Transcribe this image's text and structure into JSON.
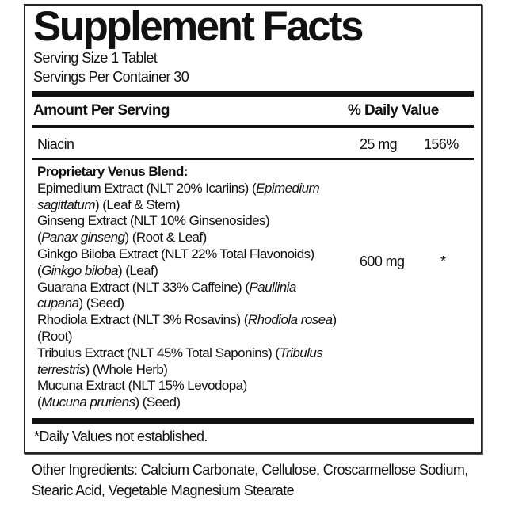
{
  "title": "Supplement Facts",
  "serving_size": "Serving Size 1 Tablet",
  "servings_per_container": "Servings Per Container 30",
  "header": {
    "amount": "Amount Per Serving",
    "daily_value": "% Daily Value"
  },
  "niacin": {
    "name": "Niacin",
    "amount": "25 mg",
    "dv": "156%"
  },
  "blend": {
    "name": "Proprietary Venus Blend:",
    "amount": "600 mg",
    "dv": "*",
    "lines": [
      [
        {
          "t": "Epimedium Extract (NLT 20% Icariins) ("
        },
        {
          "t": "Epimedium",
          "i": true
        }
      ],
      [
        {
          "t": "sagittatum",
          "i": true
        },
        {
          "t": ") (Leaf & Stem)"
        }
      ],
      [
        {
          "t": "Ginseng Extract (NLT 10% Ginsenosides)"
        }
      ],
      [
        {
          "t": " ("
        },
        {
          "t": "Panax ginseng",
          "i": true
        },
        {
          "t": ") (Root & Leaf)"
        }
      ],
      [
        {
          "t": "Ginkgo Biloba Extract (NLT 22% Total Flavonoids)"
        }
      ],
      [
        {
          "t": " ("
        },
        {
          "t": "Ginkgo biloba",
          "i": true
        },
        {
          "t": ") (Leaf)"
        }
      ],
      [
        {
          "t": "Guarana Extract (NLT 33% Caffeine) ("
        },
        {
          "t": "Paullinia",
          "i": true
        }
      ],
      [
        {
          "t": "cupana",
          "i": true
        },
        {
          "t": ") (Seed)"
        }
      ],
      [
        {
          "t": "Rhodiola Extract (NLT 3% Rosavins) ("
        },
        {
          "t": "Rhodiola rosea",
          "i": true
        },
        {
          "t": ")"
        }
      ],
      [
        {
          "t": " (Root)"
        }
      ],
      [
        {
          "t": "Tribulus Extract (NLT 45% Total Saponins) ("
        },
        {
          "t": "Tribulus",
          "i": true
        }
      ],
      [
        {
          "t": "terrestris",
          "i": true
        },
        {
          "t": ") (Whole Herb)"
        }
      ],
      [
        {
          "t": "Mucuna Extract (NLT 15% Levodopa)"
        }
      ],
      [
        {
          "t": "("
        },
        {
          "t": "Mucuna pruriens",
          "i": true
        },
        {
          "t": ") (Seed)"
        }
      ]
    ]
  },
  "footnote": "*Daily Values not established.",
  "other_ingredients": {
    "line1": "Other Ingredients: Calcium Carbonate, Cellulose, Croscarmellose Sodium,",
    "line2": "Stearic Acid, Vegetable Magnesium Stearate"
  }
}
